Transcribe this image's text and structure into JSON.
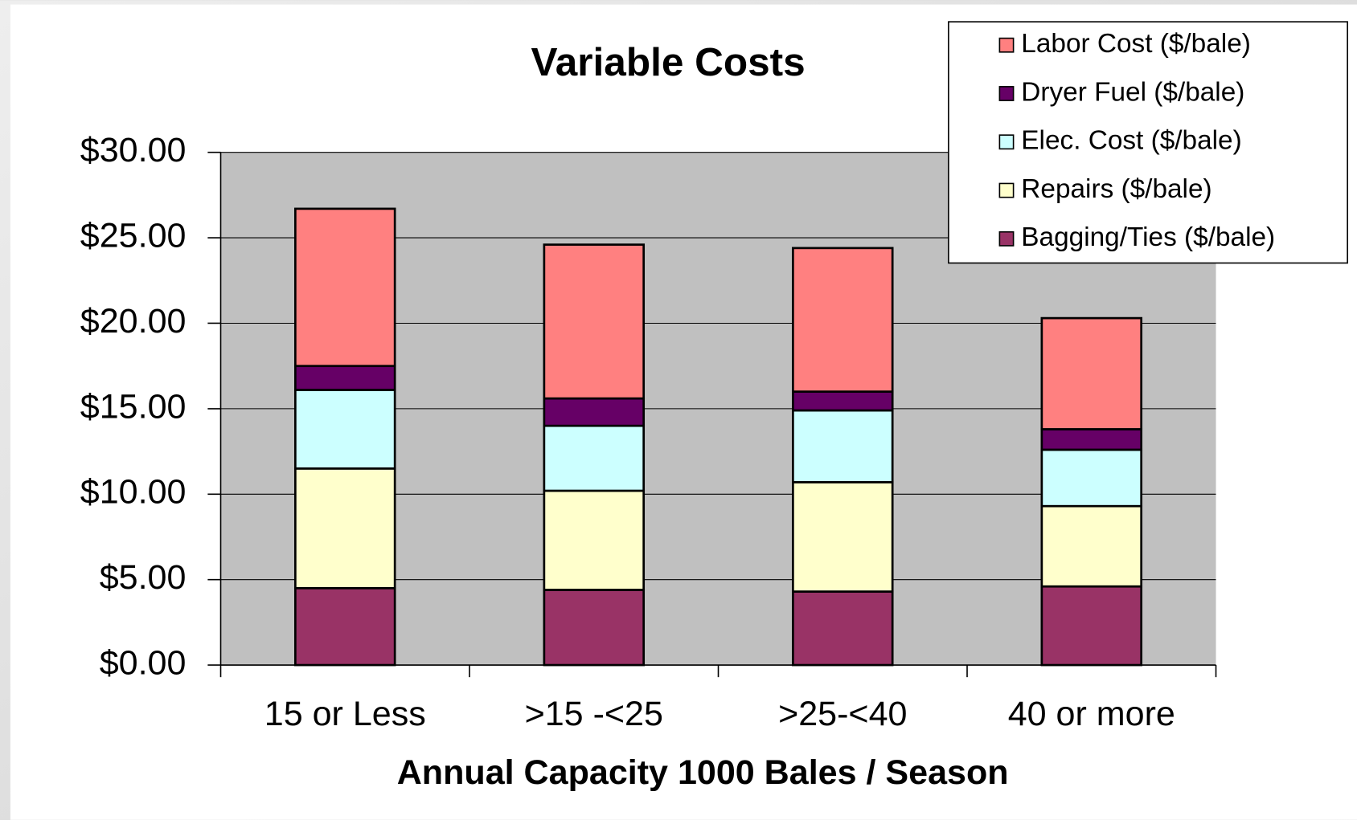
{
  "chart_data": {
    "type": "bar",
    "stacked": true,
    "title": "Variable Costs",
    "x_label": "Annual Capacity 1000 Bales /  Season",
    "categories": [
      "15 or Less",
      ">15 -<25",
      ">25-<40",
      "40 or more"
    ],
    "series": [
      {
        "name": "Bagging/Ties ($/bale)",
        "color": "#993366",
        "values": [
          4.5,
          4.4,
          4.3,
          4.6
        ]
      },
      {
        "name": "Repairs ($/bale)",
        "color": "#FFFFCC",
        "values": [
          7.0,
          5.8,
          6.4,
          4.7
        ]
      },
      {
        "name": "Elec. Cost ($/bale)",
        "color": "#CCFFFF",
        "values": [
          4.6,
          3.8,
          4.2,
          3.3
        ]
      },
      {
        "name": "Dryer Fuel  ($/bale)",
        "color": "#660066",
        "values": [
          1.4,
          1.6,
          1.1,
          1.2
        ]
      },
      {
        "name": "Labor Cost ($/bale)",
        "color": "#FF8080",
        "values": [
          9.2,
          9.0,
          8.4,
          6.5
        ]
      }
    ],
    "ylim": [
      0,
      30
    ],
    "yticks": [
      {
        "value": 0,
        "label": "$0.00"
      },
      {
        "value": 5,
        "label": "$5.00"
      },
      {
        "value": 10,
        "label": "$10.00"
      },
      {
        "value": 15,
        "label": "$15.00"
      },
      {
        "value": 20,
        "label": "$20.00"
      },
      {
        "value": 25,
        "label": "$25.00"
      },
      {
        "value": 30,
        "label": "$30.00"
      }
    ],
    "grid": true,
    "legend": "upper right",
    "plot_background": "#C0C0C0"
  }
}
